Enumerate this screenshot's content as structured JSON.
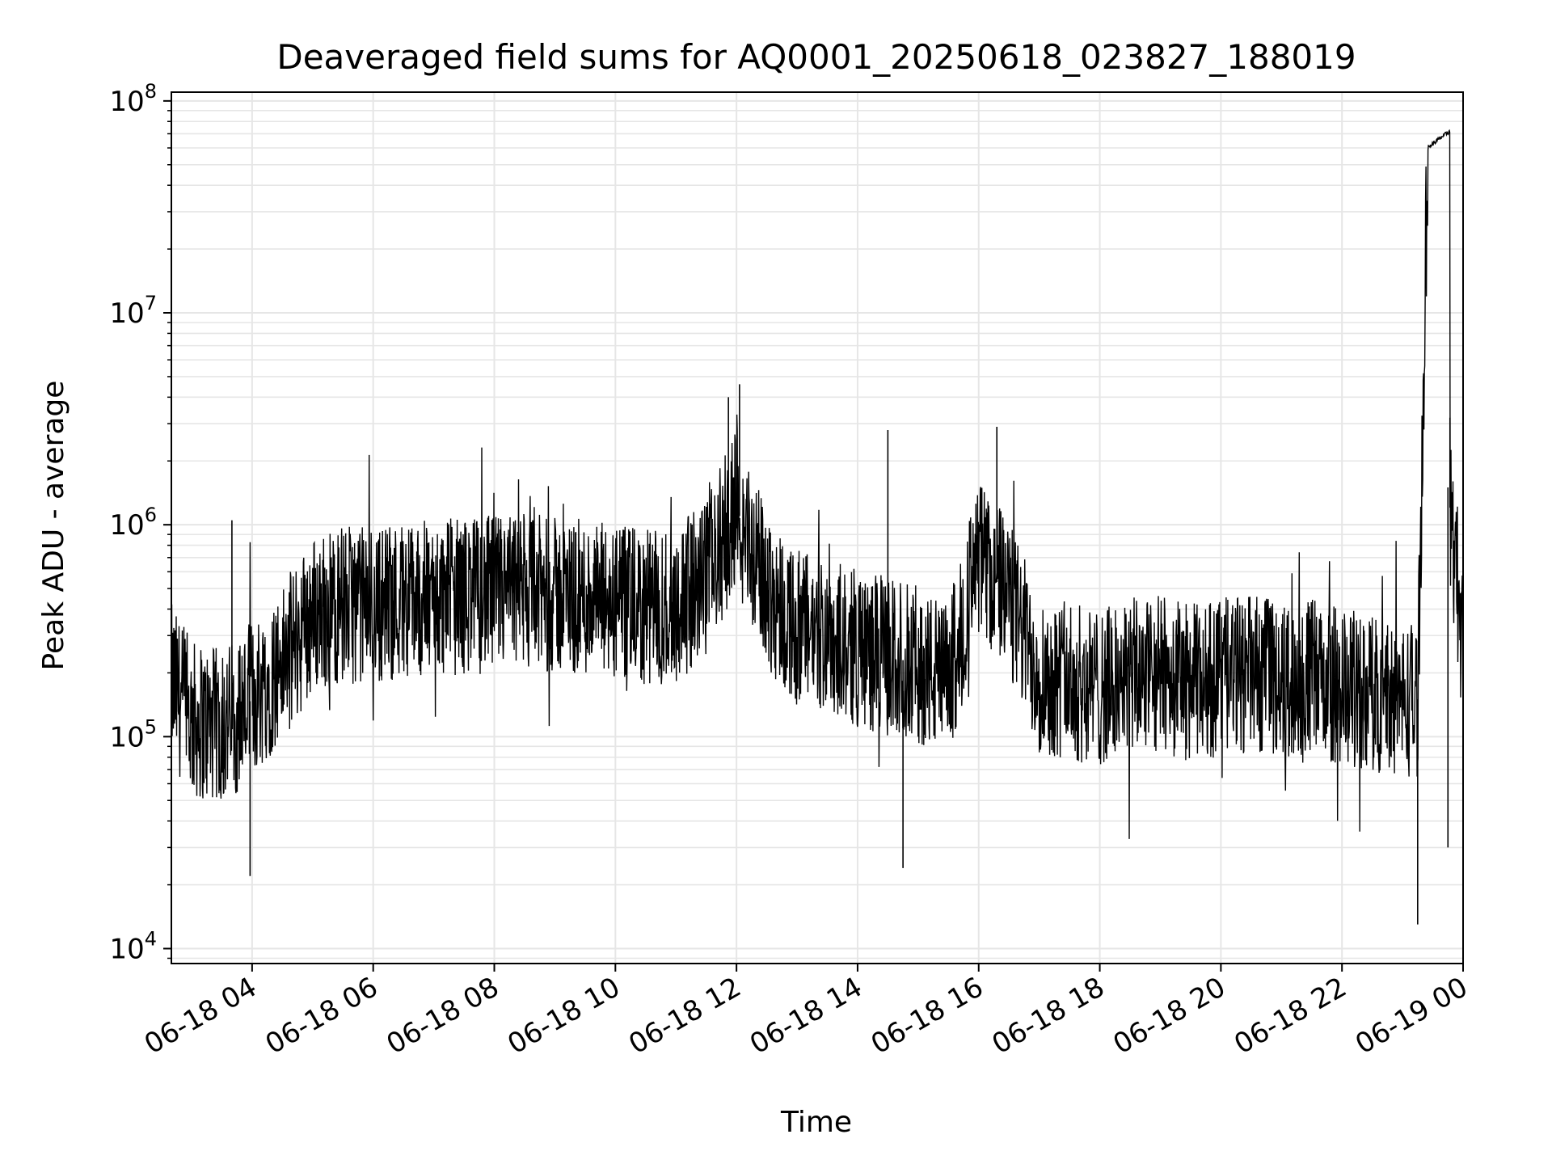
{
  "chart_data": {
    "type": "line",
    "title": "Deaveraged field sums for AQ0001_20250618_023827_188019",
    "xlabel": "Time",
    "ylabel": "Peak ADU - average",
    "y_scale": "log",
    "ylim": [
      8500,
      110000000
    ],
    "xlim": [
      "06-18 02:40",
      "06-19 00:00"
    ],
    "grid": true,
    "line_color": "#000000",
    "grid_color": "#e6e6e6",
    "x_tick_labels": [
      "06-18 04",
      "06-18 06",
      "06-18 08",
      "06-18 10",
      "06-18 12",
      "06-18 14",
      "06-18 16",
      "06-18 18",
      "06-18 20",
      "06-18 22",
      "06-19 00"
    ],
    "y_tick_labels": [
      {
        "base": "10",
        "exp": "4",
        "value": 10000
      },
      {
        "base": "10",
        "exp": "5",
        "value": 100000
      },
      {
        "base": "10",
        "exp": "6",
        "value": 1000000
      },
      {
        "base": "10",
        "exp": "7",
        "value": 10000000
      },
      {
        "base": "10",
        "exp": "8",
        "value": 100000000
      }
    ],
    "series": [
      {
        "x": [
          "06-18 02:40",
          "06-18 03:00",
          "06-18 03:30",
          "06-18 04:00",
          "06-18 04:30",
          "06-18 05:00",
          "06-18 05:30",
          "06-18 06:00",
          "06-18 06:30",
          "06-18 07:00",
          "06-18 07:30",
          "06-18 08:00",
          "06-18 08:30",
          "06-18 09:00",
          "06-18 09:30",
          "06-18 10:00",
          "06-18 10:30",
          "06-18 11:00",
          "06-18 11:30",
          "06-18 12:00",
          "06-18 12:30",
          "06-18 13:00",
          "06-18 13:30",
          "06-18 14:00",
          "06-18 14:30",
          "06-18 15:00",
          "06-18 15:30",
          "06-18 16:00",
          "06-18 16:30",
          "06-18 17:00",
          "06-18 17:30",
          "06-18 18:00",
          "06-18 18:30",
          "06-18 19:00",
          "06-18 19:30",
          "06-18 20:00",
          "06-18 20:30",
          "06-18 21:00",
          "06-18 21:30",
          "06-18 22:00",
          "06-18 22:30",
          "06-18 23:00",
          "06-18 23:15",
          "06-18 23:25",
          "06-18 23:35",
          "06-18 23:45",
          "06-18 23:55",
          "06-19 00:00"
        ],
        "y": [
          180000,
          120000,
          110000,
          150000,
          220000,
          380000,
          420000,
          420000,
          450000,
          450000,
          460000,
          470000,
          480000,
          460000,
          450000,
          420000,
          400000,
          420000,
          550000,
          1200000,
          500000,
          320000,
          300000,
          260000,
          240000,
          220000,
          180000,
          700000,
          450000,
          200000,
          180000,
          170000,
          190000,
          200000,
          180000,
          190000,
          200000,
          180000,
          190000,
          170000,
          160000,
          150000,
          150000,
          65000000,
          72000000,
          1500000,
          500000,
          250000
        ]
      }
    ],
    "annotations": [
      {
        "x": "06-18 03:40",
        "y": 1050000
      },
      {
        "x": "06-18 03:58",
        "y": 22000
      },
      {
        "x": "06-18 11:52",
        "y": 4000000
      },
      {
        "x": "06-18 12:03",
        "y": 4600000
      },
      {
        "x": "06-18 14:30",
        "y": 2800000
      },
      {
        "x": "06-18 14:45",
        "y": 24000
      },
      {
        "x": "06-18 16:18",
        "y": 2900000
      },
      {
        "x": "06-18 23:15",
        "y": 13000
      },
      {
        "x": "06-18 23:47",
        "y": 3200000
      },
      {
        "x": "06-18 23:45",
        "y": 30000
      }
    ]
  }
}
